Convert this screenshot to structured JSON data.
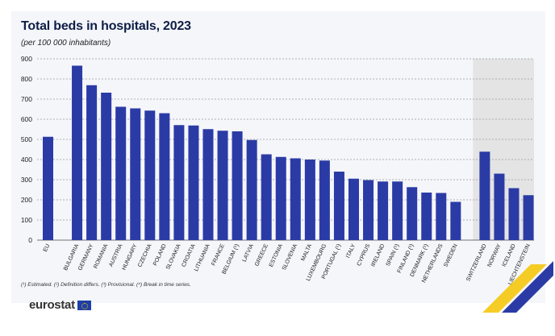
{
  "header": {
    "title": "Total beds in hospitals, 2023",
    "subtitle": "(per 100 000 inhabitants)"
  },
  "footnote": "(¹) Estimated. (²) Definition differs. (³) Provisional. (⁴) Break in time series.",
  "logo": {
    "text": "eurostat"
  },
  "colors": {
    "bar": "#2b3ba5",
    "shade": "#e4e4e4",
    "grid": "#999999",
    "text": "#222222"
  },
  "chart_data": {
    "type": "bar",
    "title": "Total beds in hospitals, 2023",
    "subtitle": "(per 100 000 inhabitants)",
    "xlabel": "",
    "ylabel": "",
    "ylim": [
      0,
      900
    ],
    "yticks": [
      0,
      100,
      200,
      300,
      400,
      500,
      600,
      700,
      800,
      900
    ],
    "grid": true,
    "groups": [
      {
        "name": "eu",
        "categories": [
          "EU"
        ],
        "values": [
          513
        ],
        "shaded": false
      },
      {
        "name": "member-states",
        "shaded": false,
        "categories": [
          "BULGARIA",
          "GERMANY",
          "ROMANIA",
          "AUSTRIA",
          "HUNGARY",
          "CZECHIA",
          "POLAND",
          "SLOVAKIA",
          "CROATIA",
          "LITHUANIA",
          "FRANCE",
          "BELGIUM (¹)",
          "LATVIA",
          "GREECE",
          "ESTONIA",
          "SLOVENIA",
          "MALTA",
          "LUXEMBOURG",
          "PORTUGAL (¹)",
          "ITALY",
          "CYPRUS",
          "IRELAND",
          "SPAIN (¹)",
          "FINLAND (¹)",
          "DENMARK (¹)",
          "NETHERLANDS",
          "SWEDEN"
        ],
        "values": [
          866,
          769,
          732,
          662,
          654,
          643,
          630,
          571,
          569,
          551,
          543,
          540,
          497,
          426,
          413,
          406,
          400,
          395,
          340,
          305,
          298,
          291,
          291,
          263,
          236,
          234,
          190
        ]
      },
      {
        "name": "efta",
        "shaded": true,
        "categories": [
          "SWITZERLAND",
          "NORWAY",
          "ICELAND",
          "LIECHTENSTEIN"
        ],
        "values": [
          439,
          330,
          258,
          223
        ]
      }
    ]
  }
}
